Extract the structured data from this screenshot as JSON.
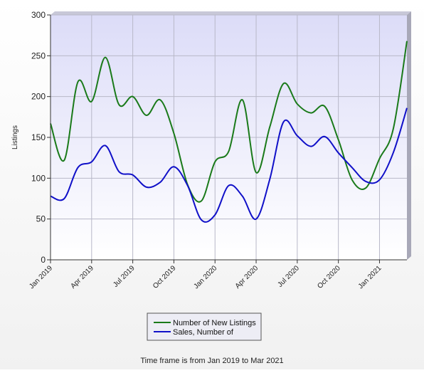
{
  "chart_data": {
    "type": "line",
    "ylabel": "Listings",
    "ylim": [
      0,
      300
    ],
    "yticks": [
      0,
      50,
      100,
      150,
      200,
      250,
      300
    ],
    "xlim": [
      "2019-01",
      "2021-03"
    ],
    "x_tick_labels": [
      "Jan 2019",
      "Apr 2019",
      "Jul 2019",
      "Oct 2019",
      "Jan 2020",
      "Apr 2020",
      "Jul 2020",
      "Oct 2020",
      "Jan 2021"
    ],
    "x": [
      "2019-01",
      "2019-02",
      "2019-03",
      "2019-04",
      "2019-05",
      "2019-06",
      "2019-07",
      "2019-08",
      "2019-09",
      "2019-10",
      "2019-11",
      "2019-12",
      "2020-01",
      "2020-02",
      "2020-03",
      "2020-04",
      "2020-05",
      "2020-06",
      "2020-07",
      "2020-08",
      "2020-09",
      "2020-10",
      "2020-11",
      "2020-12",
      "2021-01",
      "2021-02",
      "2021-03"
    ],
    "series": [
      {
        "name": "Number of New Listings",
        "color": "#1a7a1a",
        "values": [
          167,
          122,
          218,
          194,
          248,
          190,
          200,
          177,
          196,
          155,
          92,
          72,
          120,
          133,
          196,
          107,
          163,
          216,
          191,
          180,
          188,
          147,
          98,
          88,
          124,
          160,
          268
        ]
      },
      {
        "name": "Sales, Number of",
        "color": "#1010c8",
        "values": [
          78,
          75,
          113,
          120,
          140,
          108,
          104,
          89,
          95,
          114,
          91,
          49,
          55,
          91,
          78,
          50,
          99,
          169,
          152,
          139,
          151,
          131,
          113,
          96,
          98,
          131,
          186
        ]
      }
    ],
    "grid": true,
    "legend_position": "bottom-center",
    "footnote": "Time frame is from Jan 2019 to Mar 2021"
  }
}
